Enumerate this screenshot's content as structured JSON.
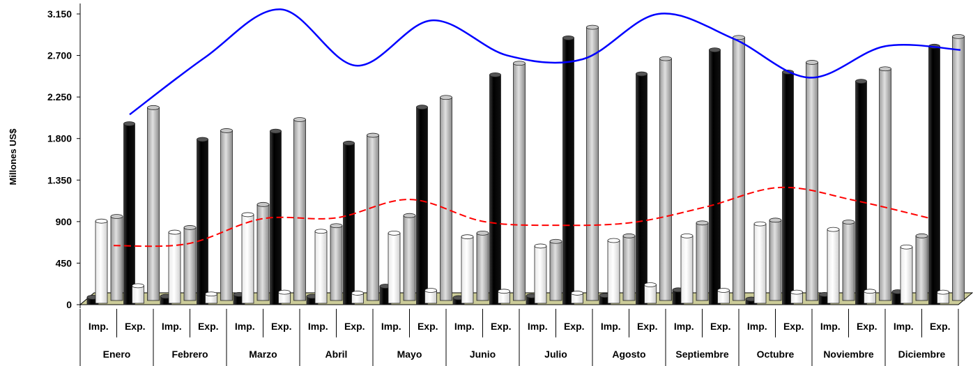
{
  "chart_data": {
    "type": "bar",
    "ylabel": "Millones US$",
    "ylim": [
      0,
      3150
    ],
    "yticks": [
      0,
      450,
      900,
      1350,
      1800,
      2250,
      2700,
      3150
    ],
    "ytick_labels": [
      "0",
      "450",
      "900",
      "1.350",
      "1.800",
      "2.250",
      "2.700",
      "3.150"
    ],
    "categories": [
      "Enero",
      "Febrero",
      "Marzo",
      "Abril",
      "Mayo",
      "Junio",
      "Julio",
      "Agosto",
      "Septiembre",
      "Octubre",
      "Noviembre",
      "Diciembre"
    ],
    "subcategories": [
      "Imp.",
      "Exp."
    ],
    "bar_series": [
      {
        "color": "#000000",
        "imp": [
          80,
          90,
          110,
          90,
          200,
          75,
          95,
          100,
          160,
          60,
          110,
          140
        ],
        "exp": [
          1960,
          1790,
          1880,
          1750,
          2140,
          2490,
          2890,
          2500,
          2760,
          2520,
          2420,
          2800
        ]
      },
      {
        "color": "#ffffff",
        "imp": [
          890,
          770,
          960,
          780,
          760,
          720,
          620,
          680,
          730,
          860,
          800,
          610
        ],
        "exp": [
          190,
          100,
          120,
          110,
          140,
          130,
          110,
          200,
          140,
          120,
          130,
          120
        ]
      },
      {
        "color": "#bfbfbf",
        "imp": [
          910,
          790,
          1040,
          810,
          920,
          730,
          640,
          700,
          840,
          870,
          850,
          700
        ],
        "exp": [
          2090,
          1840,
          1960,
          1790,
          2200,
          2570,
          2960,
          2620,
          2850,
          2580,
          2510,
          2860
        ]
      }
    ],
    "line_series": [
      {
        "color": "#0000ff",
        "style": "solid",
        "values": [
          2060,
          2680,
          3200,
          2590,
          3080,
          2700,
          2660,
          3150,
          2880,
          2460,
          2800,
          2760
        ]
      },
      {
        "color": "#ff0000",
        "style": "dashed",
        "values": [
          640,
          660,
          930,
          940,
          1140,
          900,
          860,
          890,
          1060,
          1270,
          1130,
          940
        ]
      }
    ],
    "grid": false,
    "legend": "none"
  }
}
